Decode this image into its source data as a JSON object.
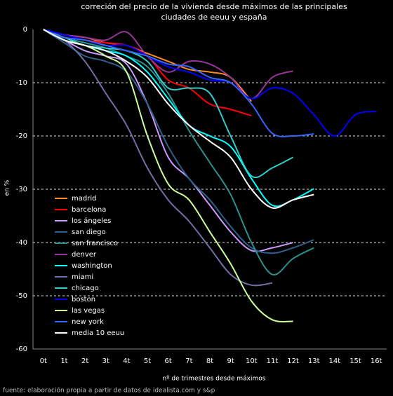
{
  "chart_data": {
    "type": "line",
    "title": "correción del precio de la vivienda desde máximos de las principales",
    "subtitle": "ciudades de eeuu y españa",
    "y_label": "en %",
    "x_label": "nº de trimestres desde máximos",
    "source": "fuente: elaboración propia a partir de datos de idealista.com y s&p",
    "categories": [
      "0t",
      "1t",
      "2t",
      "3t",
      "4t",
      "5t",
      "6t",
      "7t",
      "8t",
      "9t",
      "10t",
      "11t",
      "12t",
      "13t",
      "14t",
      "15t",
      "16t"
    ],
    "ylim": [
      -60,
      0
    ],
    "yticks": [
      0,
      -10,
      -20,
      -30,
      -40,
      -50,
      -60
    ],
    "grid": true,
    "series": [
      {
        "name": "madrid",
        "color": "#ff8c1a",
        "values": [
          0,
          -1,
          -1.5,
          -2.5,
          -3,
          -4.5,
          -6,
          -7.5,
          -8,
          -9,
          -13.5,
          null,
          null,
          null,
          null,
          null,
          null
        ]
      },
      {
        "name": "barcelona",
        "color": "#ff0000",
        "values": [
          0,
          -1,
          -2,
          -2.5,
          -3,
          -5,
          -9.5,
          -11,
          -14,
          -15,
          -16.2,
          null,
          null,
          null,
          null,
          null,
          null
        ]
      },
      {
        "name": "los ángeles",
        "color": "#cc99ff",
        "values": [
          0,
          -2,
          -4,
          -5,
          -6.5,
          -14,
          -24,
          -28,
          -33,
          -38,
          -41.5,
          -41,
          -40,
          null,
          null,
          null,
          null
        ]
      },
      {
        "name": "san diego",
        "color": "#2e5f8a",
        "values": [
          0,
          -2.5,
          -5,
          -6,
          -8,
          -14,
          -22,
          -28,
          -32,
          -37,
          -41,
          -42,
          -41,
          -39.5,
          null,
          null,
          null
        ]
      },
      {
        "name": "san francisco",
        "color": "#2a9090",
        "values": [
          0,
          -1.5,
          -2.5,
          -3.5,
          -5,
          -7,
          -12,
          -19,
          -25,
          -31,
          -40,
          -46,
          -43,
          -41,
          null,
          null,
          null
        ]
      },
      {
        "name": "denver",
        "color": "#993399",
        "values": [
          0,
          -1,
          -1.5,
          -2,
          -0.5,
          -5,
          -8,
          -6,
          -6.5,
          -9,
          -13,
          -9,
          -7.8,
          null,
          null,
          null,
          null
        ]
      },
      {
        "name": "washington",
        "color": "#00ffff",
        "values": [
          0,
          -2,
          -3,
          -4,
          -5,
          -8,
          -13,
          -18,
          -20,
          -22,
          -28,
          -33,
          -32,
          -29.9,
          null,
          null,
          null
        ]
      },
      {
        "name": "miami",
        "color": "#6f6fa8",
        "values": [
          0,
          -2,
          -6,
          -12,
          -18,
          -26,
          -32,
          -36,
          -41,
          -46,
          -48,
          -47.6,
          null,
          null,
          null,
          null,
          null
        ]
      },
      {
        "name": "chicago",
        "color": "#33cccc",
        "values": [
          0,
          -1.5,
          -3,
          -3.5,
          -4,
          -6,
          -11,
          -11,
          -12,
          -20,
          -27.5,
          -26,
          -24,
          null,
          null,
          null,
          null
        ]
      },
      {
        "name": "boston",
        "color": "#0000ff",
        "values": [
          0,
          -1,
          -2,
          -3,
          -3,
          -5,
          -7,
          -8,
          -9.5,
          -10,
          -13,
          -11,
          -12,
          -16,
          -20,
          -16,
          -15.4
        ]
      },
      {
        "name": "las vegas",
        "color": "#ccff99",
        "values": [
          0,
          -2,
          -3,
          -5,
          -8,
          -20,
          -29,
          -32,
          -38,
          -44,
          -51,
          -54.5,
          -54.8,
          null,
          null,
          null,
          null
        ]
      },
      {
        "name": "new york",
        "color": "#3366ff",
        "values": [
          0,
          -1.5,
          -2,
          -3,
          -4,
          -5,
          -6.5,
          -7,
          -9,
          -10,
          -14,
          -19.5,
          -20,
          -19.6,
          null,
          null,
          null
        ]
      },
      {
        "name": "media 10 eeuu",
        "color": "#ffffff",
        "values": [
          0,
          -2,
          -3,
          -4,
          -6,
          -9,
          -14,
          -18,
          -21,
          -24,
          -30,
          -33.5,
          -32,
          -31,
          null,
          null,
          null
        ]
      }
    ]
  }
}
